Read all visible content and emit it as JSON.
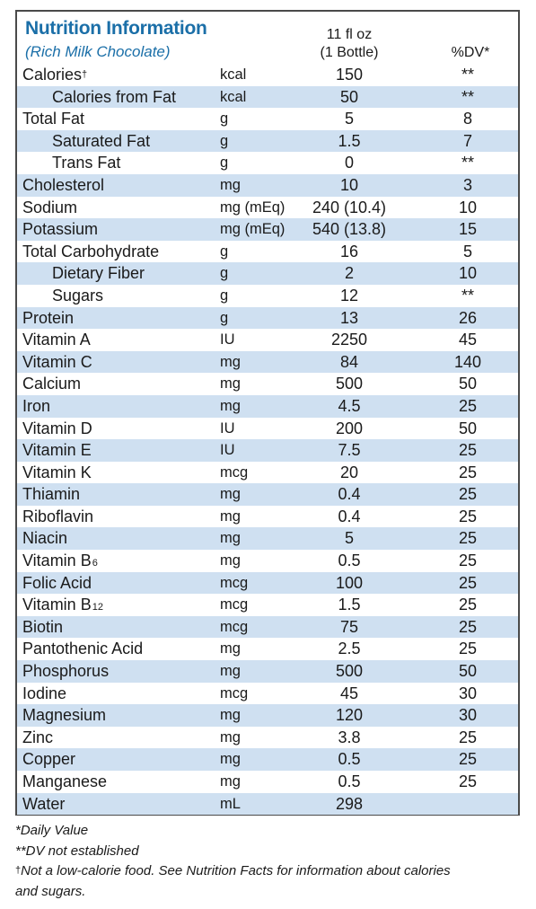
{
  "panel": {
    "title": "Nutrition Information",
    "subtitle": "(Rich Milk Chocolate)",
    "serving_line1": "11 fl oz",
    "serving_line2": "(1 Bottle)",
    "dv_header": "%DV*"
  },
  "rows": [
    {
      "name": "Calories",
      "mark": "†",
      "unit": "kcal",
      "amount": "150",
      "dv": "**",
      "indent": false,
      "shaded": false
    },
    {
      "name": "Calories from Fat",
      "unit": "kcal",
      "amount": "50",
      "dv": "**",
      "indent": true,
      "shaded": true
    },
    {
      "name": "Total Fat",
      "unit": "g",
      "amount": "5",
      "dv": "8",
      "indent": false,
      "shaded": false
    },
    {
      "name": "Saturated Fat",
      "unit": "g",
      "amount": "1.5",
      "dv": "7",
      "indent": true,
      "shaded": true
    },
    {
      "name": "Trans Fat",
      "unit": "g",
      "amount": "0",
      "dv": "**",
      "indent": true,
      "shaded": false
    },
    {
      "name": "Cholesterol",
      "unit": "mg",
      "amount": "10",
      "dv": "3",
      "indent": false,
      "shaded": true
    },
    {
      "name": "Sodium",
      "unit": "mg (mEq)",
      "amount": "240 (10.4)",
      "dv": "10",
      "indent": false,
      "shaded": false
    },
    {
      "name": "Potassium",
      "unit": "mg (mEq)",
      "amount": "540 (13.8)",
      "dv": "15",
      "indent": false,
      "shaded": true
    },
    {
      "name": "Total Carbohydrate",
      "unit": "g",
      "amount": "16",
      "dv": "5",
      "indent": false,
      "shaded": false
    },
    {
      "name": "Dietary Fiber",
      "unit": "g",
      "amount": "2",
      "dv": "10",
      "indent": true,
      "shaded": true
    },
    {
      "name": "Sugars",
      "unit": "g",
      "amount": "12",
      "dv": "**",
      "indent": true,
      "shaded": false
    },
    {
      "name": "Protein",
      "unit": "g",
      "amount": "13",
      "dv": "26",
      "indent": false,
      "shaded": true
    },
    {
      "name": "Vitamin A",
      "unit": "IU",
      "amount": "2250",
      "dv": "45",
      "indent": false,
      "shaded": false
    },
    {
      "name": "Vitamin C",
      "unit": "mg",
      "amount": "84",
      "dv": "140",
      "indent": false,
      "shaded": true
    },
    {
      "name": "Calcium",
      "unit": "mg",
      "amount": "500",
      "dv": "50",
      "indent": false,
      "shaded": false
    },
    {
      "name": "Iron",
      "unit": "mg",
      "amount": "4.5",
      "dv": "25",
      "indent": false,
      "shaded": true
    },
    {
      "name": "Vitamin D",
      "unit": "IU",
      "amount": "200",
      "dv": "50",
      "indent": false,
      "shaded": false
    },
    {
      "name": "Vitamin E",
      "unit": "IU",
      "amount": "7.5",
      "dv": "25",
      "indent": false,
      "shaded": true
    },
    {
      "name": "Vitamin K",
      "unit": "mcg",
      "amount": "20",
      "dv": "25",
      "indent": false,
      "shaded": false
    },
    {
      "name": "Thiamin",
      "unit": "mg",
      "amount": "0.4",
      "dv": "25",
      "indent": false,
      "shaded": true
    },
    {
      "name": "Riboflavin",
      "unit": "mg",
      "amount": "0.4",
      "dv": "25",
      "indent": false,
      "shaded": false
    },
    {
      "name": "Niacin",
      "unit": "mg",
      "amount": "5",
      "dv": "25",
      "indent": false,
      "shaded": true
    },
    {
      "name": "Vitamin B",
      "sub": "6",
      "unit": "mg",
      "amount": "0.5",
      "dv": "25",
      "indent": false,
      "shaded": false
    },
    {
      "name": "Folic Acid",
      "unit": "mcg",
      "amount": "100",
      "dv": "25",
      "indent": false,
      "shaded": true
    },
    {
      "name": "Vitamin B",
      "sub": "12",
      "unit": "mcg",
      "amount": "1.5",
      "dv": "25",
      "indent": false,
      "shaded": false
    },
    {
      "name": "Biotin",
      "unit": "mcg",
      "amount": "75",
      "dv": "25",
      "indent": false,
      "shaded": true
    },
    {
      "name": "Pantothenic Acid",
      "unit": "mg",
      "amount": "2.5",
      "dv": "25",
      "indent": false,
      "shaded": false
    },
    {
      "name": "Phosphorus",
      "unit": "mg",
      "amount": "500",
      "dv": "50",
      "indent": false,
      "shaded": true
    },
    {
      "name": "Iodine",
      "unit": "mcg",
      "amount": "45",
      "dv": "30",
      "indent": false,
      "shaded": false
    },
    {
      "name": "Magnesium",
      "unit": "mg",
      "amount": "120",
      "dv": "30",
      "indent": false,
      "shaded": true
    },
    {
      "name": "Zinc",
      "unit": "mg",
      "amount": "3.8",
      "dv": "25",
      "indent": false,
      "shaded": false
    },
    {
      "name": "Copper",
      "unit": "mg",
      "amount": "0.5",
      "dv": "25",
      "indent": false,
      "shaded": true
    },
    {
      "name": "Manganese",
      "unit": "mg",
      "amount": "0.5",
      "dv": "25",
      "indent": false,
      "shaded": false
    },
    {
      "name": "Water",
      "unit": "mL",
      "amount": "298",
      "dv": "",
      "indent": false,
      "shaded": true
    }
  ],
  "footnotes": {
    "daily_value": "*Daily Value",
    "dv_not_established": "**DV not established",
    "dagger": "†",
    "low_calorie_line1": "Not a low-calorie food. See Nutrition Facts for information about calories",
    "low_calorie_line2": "and sugars."
  },
  "colors": {
    "title": "#1b6fa8",
    "row_shading": "#cfe0f1",
    "border": "#4a4a4a"
  }
}
